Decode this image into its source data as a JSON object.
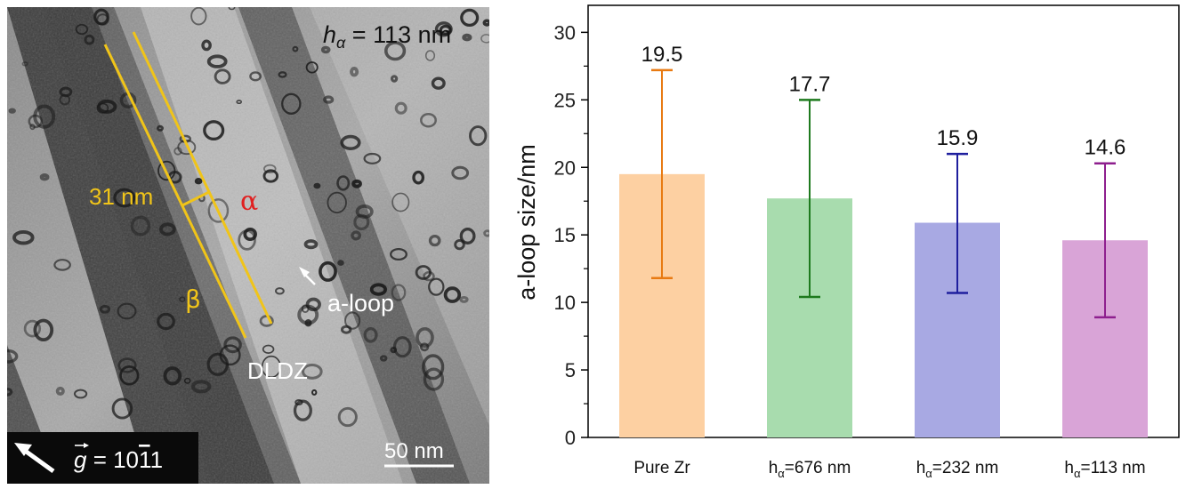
{
  "micrograph": {
    "h_symbol": "h",
    "h_subscript": "α",
    "h_value": " = 113 nm",
    "width_label": "31 nm",
    "alpha_label": "α",
    "beta_label": "β",
    "loop_label": "a-loop",
    "zone_label": "DLDZ",
    "g_symbol": "g",
    "g_value": " = 10",
    "g_bar_digit": "1",
    "g_last_digit": "1",
    "scale_label": "50 nm",
    "colors": {
      "phase_lines": "#f0c419",
      "alpha": "#e02020",
      "annotations": "#ffffff"
    }
  },
  "chart_data": {
    "type": "bar",
    "categories": [
      {
        "base": "Pure Zr",
        "sub": "",
        "rest": ""
      },
      {
        "base": "h",
        "sub": "α",
        "rest": "=676 nm"
      },
      {
        "base": "h",
        "sub": "α",
        "rest": "=232 nm"
      },
      {
        "base": "h",
        "sub": "α",
        "rest": "=113 nm"
      }
    ],
    "values": [
      19.5,
      17.7,
      15.9,
      14.6
    ],
    "value_labels": [
      "19.5",
      "17.7",
      "15.9",
      "14.6"
    ],
    "error_low": [
      11.8,
      10.4,
      10.7,
      8.9
    ],
    "error_high": [
      27.2,
      25.0,
      21.0,
      20.3
    ],
    "bar_colors": [
      "#fdd0a2",
      "#a8dcae",
      "#a8a9e3",
      "#d9a4d7"
    ],
    "error_colors": [
      "#e87a12",
      "#1e7a1e",
      "#1f1f9e",
      "#8e1f8e"
    ],
    "ylabel": "a-loop size/nm",
    "ylim": [
      0,
      32
    ],
    "yticks": [
      "0",
      "5",
      "10",
      "15",
      "20",
      "25",
      "30"
    ],
    "grid": false
  }
}
